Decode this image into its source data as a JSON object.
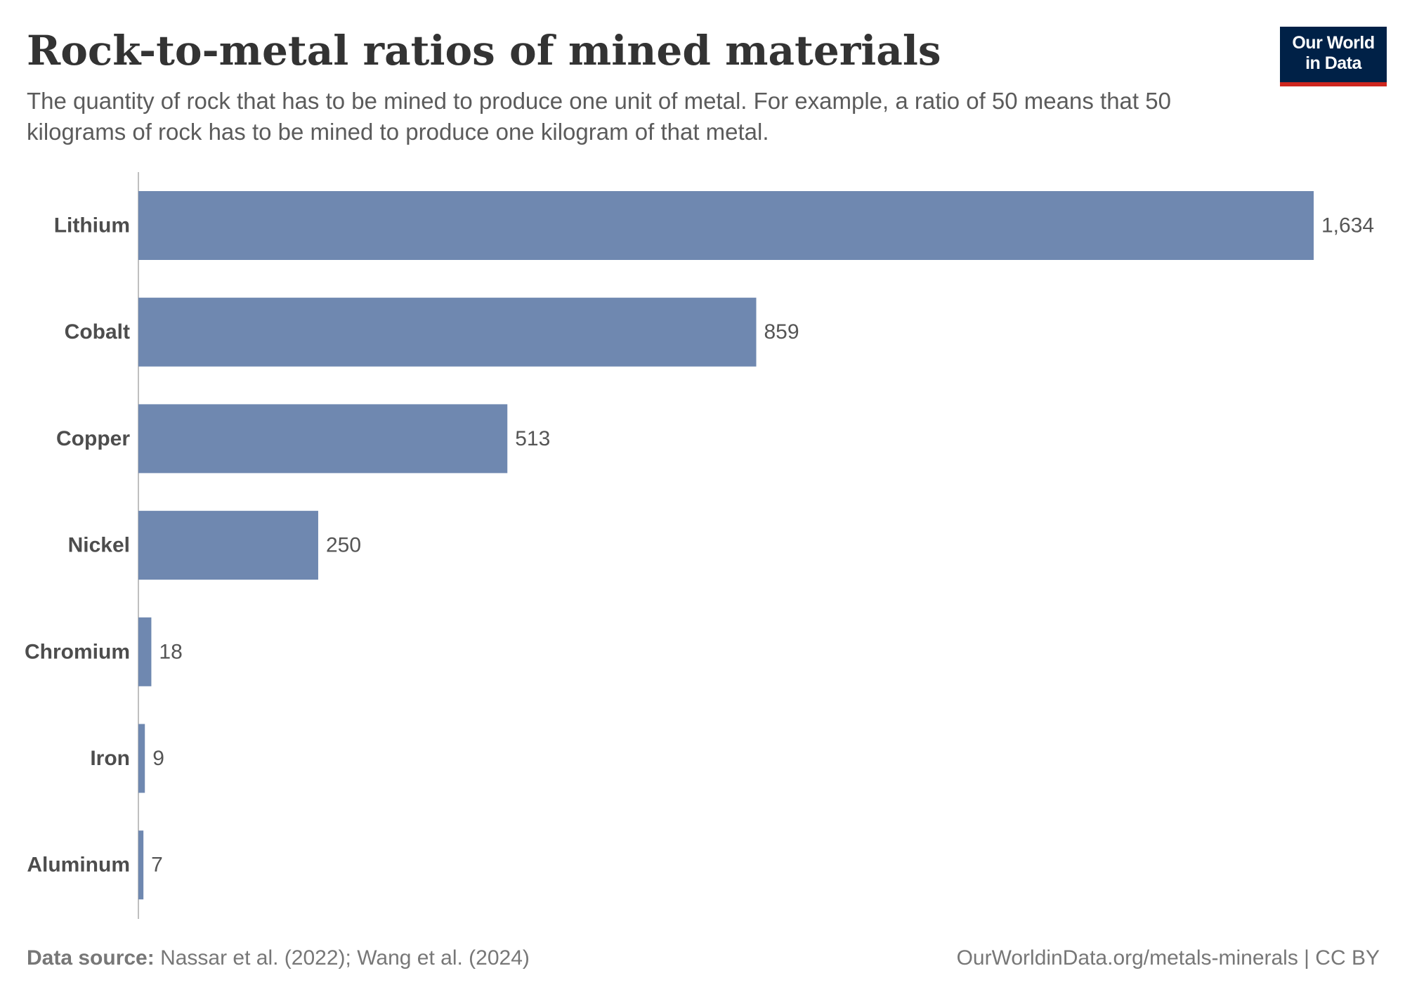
{
  "header": {
    "title": "Rock-to-metal ratios of mined materials",
    "subtitle": "The quantity of rock that has to be mined to produce one unit of metal. For example, a ratio of 50 means that 50 kilograms of rock has to be mined to produce one kilogram of that metal."
  },
  "logo": {
    "line1": "Our World",
    "line2": "in Data",
    "background_color": "#002147",
    "accent_color": "#ce261e"
  },
  "chart_data": {
    "type": "bar",
    "orientation": "horizontal",
    "categories": [
      "Lithium",
      "Cobalt",
      "Copper",
      "Nickel",
      "Chromium",
      "Iron",
      "Aluminum"
    ],
    "values": [
      1634,
      859,
      513,
      250,
      18,
      9,
      7
    ],
    "value_labels": [
      "1,634",
      "859",
      "513",
      "250",
      "18",
      "9",
      "7"
    ],
    "bar_color": "#6f88b0",
    "axis_color": "#aaaaaa",
    "xlim": [
      0,
      1634
    ],
    "grid": false,
    "legend": "none"
  },
  "footer": {
    "source_label": "Data source:",
    "source_text": " Nassar et al. (2022); Wang et al. (2024)",
    "url_text": "OurWorldinData.org/metals-minerals | CC BY"
  }
}
